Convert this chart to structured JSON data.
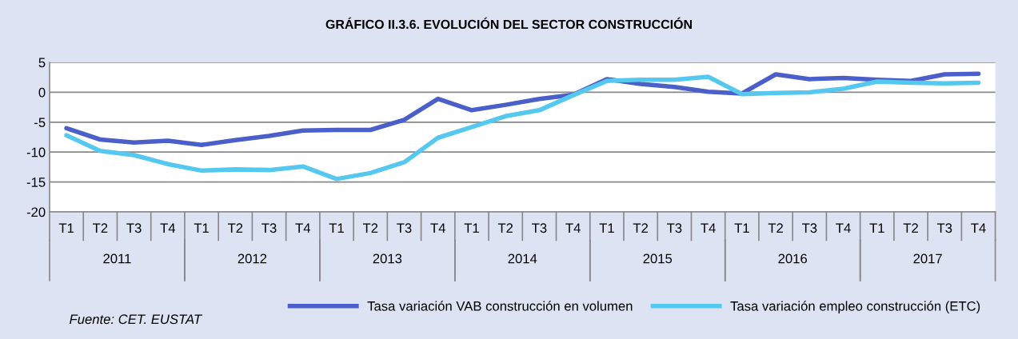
{
  "chart_data": {
    "type": "line",
    "title": "GRÁFICO II.3.6. EVOLUCIÓN DEL SECTOR CONSTRUCCIÓN",
    "categories": [
      "T1",
      "T2",
      "T3",
      "T4",
      "T1",
      "T2",
      "T3",
      "T4",
      "T1",
      "T2",
      "T3",
      "T4",
      "T1",
      "T2",
      "T3",
      "T4",
      "T1",
      "T2",
      "T3",
      "T4",
      "T1",
      "T2",
      "T3",
      "T4",
      "T1",
      "T2",
      "T3",
      "T4"
    ],
    "series": [
      {
        "name": "Tasa variación VAB construcción en volumen",
        "color": "#4a5fc9",
        "values": [
          -6.0,
          -7.9,
          -8.4,
          -8.1,
          -8.8,
          -8.0,
          -7.3,
          -6.4,
          -6.3,
          -6.3,
          -4.6,
          -1.1,
          -3.0,
          -2.1,
          -1.1,
          -0.4,
          2.2,
          1.4,
          0.9,
          0.1,
          -0.2,
          3.0,
          2.2,
          2.4,
          2.1,
          1.9,
          3.0,
          3.1
        ]
      },
      {
        "name": "Tasa variación empleo construcción (ETC)",
        "color": "#55c8ef",
        "values": [
          -7.2,
          -9.8,
          -10.5,
          -12.0,
          -13.1,
          -12.9,
          -13.0,
          -12.4,
          -14.5,
          -13.5,
          -11.7,
          -7.6,
          -5.8,
          -4.0,
          -3.0,
          -0.5,
          1.9,
          2.1,
          2.1,
          2.6,
          -0.3,
          -0.1,
          0.0,
          0.6,
          1.8,
          1.6,
          1.5,
          1.6
        ]
      }
    ],
    "ylim": [
      -20,
      5
    ],
    "yticks": [
      -20,
      -15,
      -10,
      -5,
      0,
      5
    ],
    "grid": "y",
    "legend": "bottom right",
    "marker": "none",
    "line_style": "solid",
    "annotations": [
      "2011",
      "2012",
      "2013",
      "2014",
      "2015",
      "2016",
      "2017",
      "Fuente: CET. EUSTAT"
    ]
  }
}
